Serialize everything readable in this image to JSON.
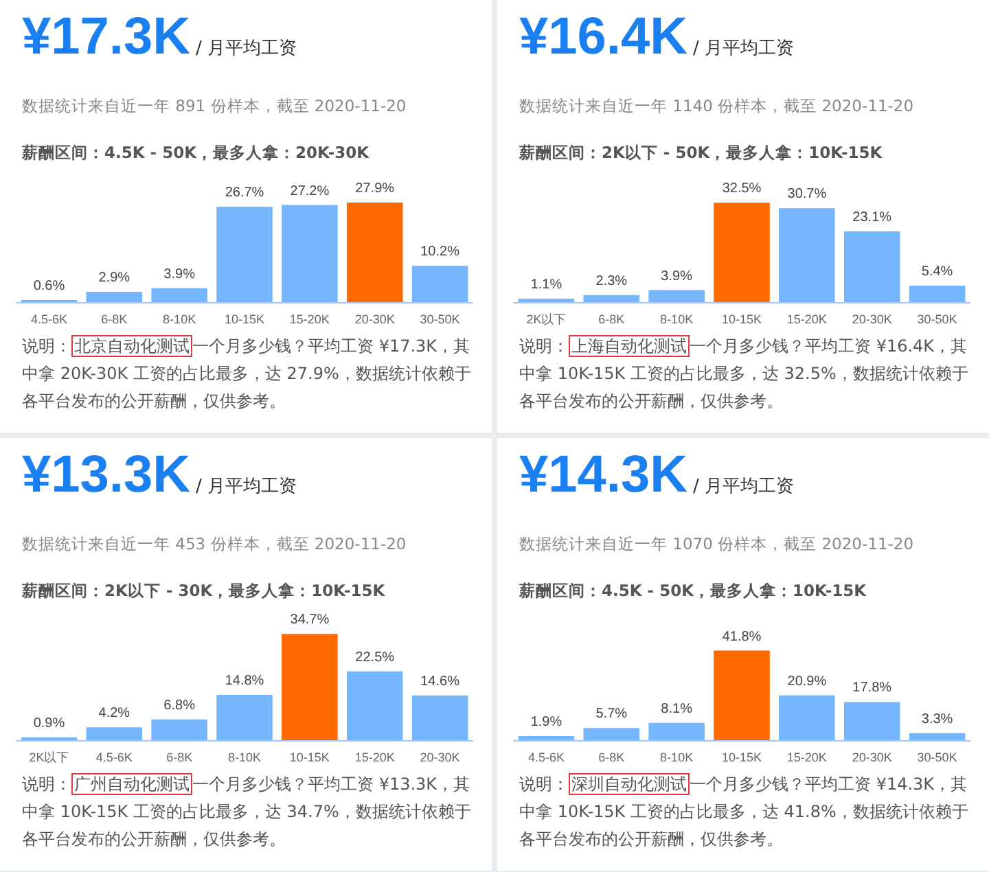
{
  "chart_data": [
    {
      "type": "bar",
      "title": "¥17.3K",
      "subtitle": "/ 月平均工资",
      "annotations": [
        "数据统计来自近一年 891 份样本，截至 2020-11-20",
        "薪酬区间：4.5K - 50K，最多人拿：20K-30K",
        "说明：",
        "北京自动化测试",
        "一个月多少钱？平均工资 ¥17.3K，其中拿 20K-30K 工资的占比最多，达 27.9%，数据统计依赖于各平台发布的公开薪酬，仅供参考。"
      ],
      "categories": [
        "4.5-6K",
        "6-8K",
        "8-10K",
        "10-15K",
        "15-20K",
        "20-30K",
        "30-50K"
      ],
      "values": [
        0.6,
        2.9,
        3.9,
        26.7,
        27.2,
        27.9,
        10.2
      ],
      "colors": [
        "#75b6ff",
        "#75b6ff",
        "#75b6ff",
        "#75b6ff",
        "#75b6ff",
        "#ff6a00",
        "#75b6ff"
      ],
      "value_labels": [
        "0.6%",
        "2.9%",
        "3.9%",
        "26.7%",
        "27.2%",
        "27.9%",
        "10.2%"
      ]
    },
    {
      "type": "bar",
      "title": "¥16.4K",
      "subtitle": "/ 月平均工资",
      "annotations": [
        "数据统计来自近一年 1140 份样本，截至 2020-11-20",
        "薪酬区间：2K以下 - 50K，最多人拿：10K-15K",
        "说明：",
        "上海自动化测试",
        "一个月多少钱？平均工资 ¥16.4K，其中拿 10K-15K 工资的占比最多，达 32.5%，数据统计依赖于各平台发布的公开薪酬，仅供参考。"
      ],
      "categories": [
        "2K以下",
        "6-8K",
        "8-10K",
        "10-15K",
        "15-20K",
        "20-30K",
        "30-50K"
      ],
      "values": [
        1.1,
        2.3,
        3.9,
        32.5,
        30.7,
        23.1,
        5.4
      ],
      "colors": [
        "#75b6ff",
        "#75b6ff",
        "#75b6ff",
        "#ff6a00",
        "#75b6ff",
        "#75b6ff",
        "#75b6ff"
      ],
      "value_labels": [
        "1.1%",
        "2.3%",
        "3.9%",
        "32.5%",
        "30.7%",
        "23.1%",
        "5.4%"
      ]
    },
    {
      "type": "bar",
      "title": "¥13.3K",
      "subtitle": "/ 月平均工资",
      "annotations": [
        "数据统计来自近一年 453 份样本，截至 2020-11-20",
        "薪酬区间：2K以下 - 30K，最多人拿：10K-15K",
        "说明：",
        "广州自动化测试",
        "一个月多少钱？平均工资 ¥13.3K，其中拿 10K-15K 工资的占比最多，达 34.7%，数据统计依赖于各平台发布的公开薪酬，仅供参考。"
      ],
      "categories": [
        "2K以下",
        "4.5-6K",
        "6-8K",
        "8-10K",
        "10-15K",
        "15-20K",
        "20-30K"
      ],
      "values": [
        0.9,
        4.2,
        6.8,
        14.8,
        34.7,
        22.5,
        14.6
      ],
      "colors": [
        "#75b6ff",
        "#75b6ff",
        "#75b6ff",
        "#75b6ff",
        "#ff6a00",
        "#75b6ff",
        "#75b6ff"
      ],
      "value_labels": [
        "0.9%",
        "4.2%",
        "6.8%",
        "14.8%",
        "34.7%",
        "22.5%",
        "14.6%"
      ]
    },
    {
      "type": "bar",
      "title": "¥14.3K",
      "subtitle": "/ 月平均工资",
      "annotations": [
        "数据统计来自近一年 1070 份样本，截至 2020-11-20",
        "薪酬区间：4.5K - 50K，最多人拿：10K-15K",
        "说明：",
        "深圳自动化测试",
        "一个月多少钱？平均工资 ¥14.3K，其中拿 10K-15K 工资的占比最多，达 41.8%，数据统计依赖于各平台发布的公开薪酬，仅供参考。"
      ],
      "categories": [
        "4.5-6K",
        "6-8K",
        "8-10K",
        "10-15K",
        "15-20K",
        "20-30K",
        "30-50K"
      ],
      "values": [
        1.9,
        5.7,
        8.1,
        41.8,
        20.9,
        17.8,
        3.3
      ],
      "colors": [
        "#75b6ff",
        "#75b6ff",
        "#75b6ff",
        "#ff6a00",
        "#75b6ff",
        "#75b6ff",
        "#75b6ff"
      ],
      "value_labels": [
        "1.9%",
        "5.7%",
        "8.1%",
        "41.8%",
        "20.9%",
        "17.8%",
        "3.3%"
      ]
    }
  ]
}
